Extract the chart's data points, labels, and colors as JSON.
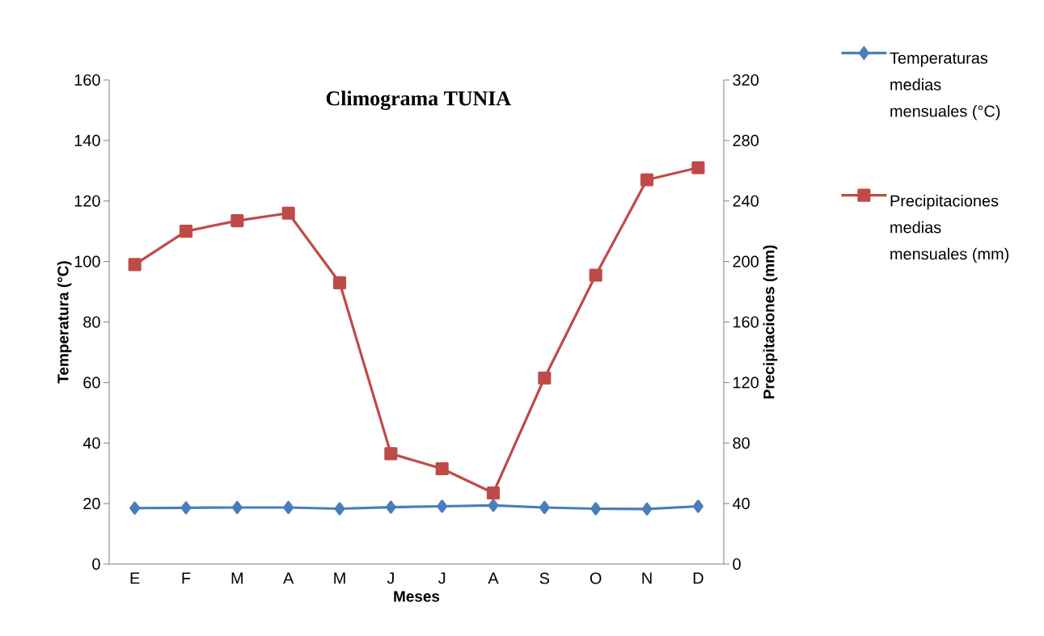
{
  "chart_data": {
    "type": "line",
    "title": "Climograma TUNIA",
    "xlabel": "Meses",
    "ylabel": "Temperatura (°C)",
    "y2label": "Precipitaciones (mm)",
    "categories": [
      "E",
      "F",
      "M",
      "A",
      "M",
      "J",
      "J",
      "A",
      "S",
      "O",
      "N",
      "D"
    ],
    "series": [
      {
        "name": "Temperaturas medias mensuales (°C)",
        "color": "#4a7ebb",
        "marker": "diamond",
        "values": [
          18.5,
          18.6,
          18.7,
          18.7,
          18.3,
          18.8,
          19.1,
          19.4,
          18.7,
          18.3,
          18.2,
          19.1
        ]
      },
      {
        "name": "Precipitaciones medias mensuales (mm)",
        "color": "#be4b48",
        "marker": "square",
        "axis": "y2",
        "values": [
          198,
          220,
          227,
          232,
          186,
          73,
          63,
          47,
          123,
          191,
          254,
          262
        ]
      }
    ],
    "ylim": [
      0,
      160
    ],
    "yticks": [
      0,
      20,
      40,
      60,
      80,
      100,
      120,
      140,
      160
    ],
    "y2lim": [
      0,
      320
    ],
    "y2ticks": [
      0,
      40,
      80,
      120,
      160,
      200,
      240,
      280,
      320
    ],
    "grid": false,
    "legend": "right",
    "line_style": "solid"
  }
}
